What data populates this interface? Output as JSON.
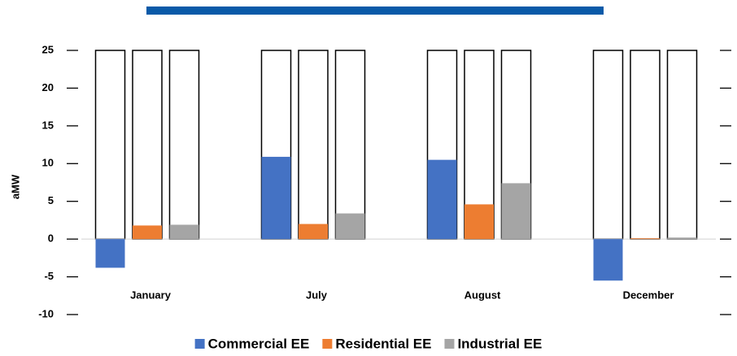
{
  "chart_data": {
    "type": "bar",
    "categories": [
      "January",
      "July",
      "August",
      "December"
    ],
    "series": [
      {
        "name": "Commercial EE",
        "color": "#4472c4",
        "values": [
          -3.8,
          10.9,
          10.5,
          -5.5
        ]
      },
      {
        "name": "Residential EE",
        "color": "#ed7d31",
        "values": [
          1.8,
          2.0,
          4.6,
          0.1
        ]
      },
      {
        "name": "Industrial EE",
        "color": "#a5a5a5",
        "values": [
          1.9,
          3.4,
          7.4,
          0.2
        ]
      }
    ],
    "y_label": "aMW",
    "ylim": [
      -10,
      25
    ],
    "yticks": [
      -10,
      -5,
      0,
      5,
      10,
      15,
      20,
      25
    ],
    "grid": false,
    "bar_frames": true,
    "legend": "bottom"
  }
}
